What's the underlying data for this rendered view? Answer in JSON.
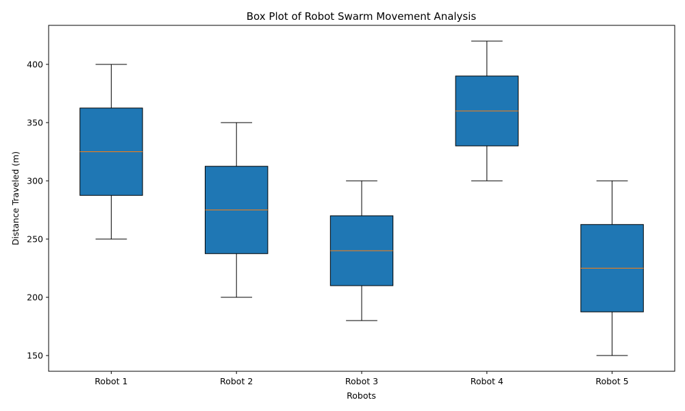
{
  "chart_data": {
    "type": "box",
    "title": "Box Plot of Robot Swarm Movement Analysis",
    "xlabel": "Robots",
    "ylabel": "Distance Traveled (m)",
    "categories": [
      "Robot 1",
      "Robot 2",
      "Robot 3",
      "Robot 4",
      "Robot 5"
    ],
    "boxes": [
      {
        "name": "Robot 1",
        "min": 250,
        "q1": 287.5,
        "median": 325,
        "q3": 362.5,
        "max": 400
      },
      {
        "name": "Robot 2",
        "min": 200,
        "q1": 237.5,
        "median": 275,
        "q3": 312.5,
        "max": 350
      },
      {
        "name": "Robot 3",
        "min": 180,
        "q1": 210,
        "median": 240,
        "q3": 270,
        "max": 300
      },
      {
        "name": "Robot 4",
        "min": 300,
        "q1": 330,
        "median": 360,
        "q3": 390,
        "max": 420
      },
      {
        "name": "Robot 5",
        "min": 150,
        "q1": 187.5,
        "median": 225,
        "q3": 262.5,
        "max": 300
      }
    ],
    "ylim": [
      136.5,
      433.5
    ],
    "yticks": [
      150,
      200,
      250,
      300,
      350,
      400
    ],
    "grid": false,
    "box_color": "#1f77b4",
    "median_color": "#ff7f0e",
    "line_color": "#000000"
  }
}
